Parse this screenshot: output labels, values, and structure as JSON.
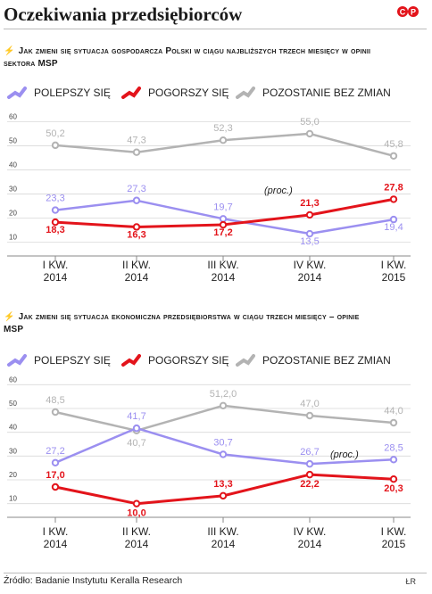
{
  "title": "Oczekiwania przedsiębiorców",
  "logo_text": "©℗",
  "legend": {
    "better": "POLEPSZY SIĘ",
    "worse": "POGORSZY SIĘ",
    "same": "POZOSTANIE BEZ ZMIAN"
  },
  "colors": {
    "better": "#9b8ff0",
    "worse": "#e3141b",
    "same": "#b3b3b3",
    "accent": "#e3141b"
  },
  "source": "Źródło: Badanie Instytutu Keralla Research",
  "author": "ŁR",
  "chart_data": [
    {
      "type": "line",
      "title": "Jak zmieni się sytuacja gospodarcza Polski w ciągu najbliższych trzech miesięcy w opinii sektora MSP",
      "unit_label": "(proc.)",
      "categories": [
        [
          "I KW.",
          "2014"
        ],
        [
          "II KW.",
          "2014"
        ],
        [
          "III KW.",
          "2014"
        ],
        [
          "IV KW.",
          "2014"
        ],
        [
          "I KW.",
          "2015"
        ]
      ],
      "yticks": [
        10,
        20,
        30,
        40,
        50,
        60
      ],
      "ylim": [
        5,
        62
      ],
      "series": [
        {
          "key": "same",
          "name": "POZOSTANIE BEZ ZMIAN",
          "values": [
            50.2,
            47.3,
            52.3,
            55.0,
            45.8
          ],
          "labels": [
            "50,2",
            "47,3",
            "52,3",
            "55,0",
            "45,8"
          ]
        },
        {
          "key": "better",
          "name": "POLEPSZY SIĘ",
          "values": [
            23.3,
            27.3,
            19.7,
            13.5,
            19.4
          ],
          "labels": [
            "23,3",
            "27,3",
            "19,7",
            "13,5",
            "19,4"
          ]
        },
        {
          "key": "worse",
          "name": "POGORSZY SIĘ",
          "values": [
            18.3,
            16.3,
            17.2,
            21.3,
            27.8
          ],
          "labels": [
            "18,3",
            "16,3",
            "17,2",
            "21,3",
            "27,8"
          ]
        }
      ]
    },
    {
      "type": "line",
      "title": "Jak zmieni się sytuacja ekonomiczna przedsiębiorstwa w ciągu trzech miesięcy – opinie MSP",
      "unit_label": "(proc.)",
      "categories": [
        [
          "I KW.",
          "2014"
        ],
        [
          "II KW.",
          "2014"
        ],
        [
          "III KW.",
          "2014"
        ],
        [
          "IV KW.",
          "2014"
        ],
        [
          "I KW.",
          "2015"
        ]
      ],
      "yticks": [
        10,
        20,
        30,
        40,
        50,
        60
      ],
      "ylim": [
        5,
        62
      ],
      "series": [
        {
          "key": "same",
          "name": "POZOSTANIE BEZ ZMIAN",
          "values": [
            48.5,
            40.7,
            51.2,
            47.0,
            44.0
          ],
          "labels": [
            "48,5",
            "40,7",
            "51,2,0",
            "47,0",
            "44,0"
          ]
        },
        {
          "key": "better",
          "name": "POLEPSZY SIĘ",
          "values": [
            27.2,
            41.7,
            30.7,
            26.7,
            28.5
          ],
          "labels": [
            "27,2",
            "41,7",
            "30,7",
            "26,7",
            "28,5"
          ]
        },
        {
          "key": "worse",
          "name": "POGORSZY SIĘ",
          "values": [
            17.0,
            10.0,
            13.3,
            22.2,
            20.3
          ],
          "labels": [
            "17,0",
            "10,0",
            "13,3",
            "22,2",
            "20,3"
          ]
        }
      ]
    }
  ]
}
